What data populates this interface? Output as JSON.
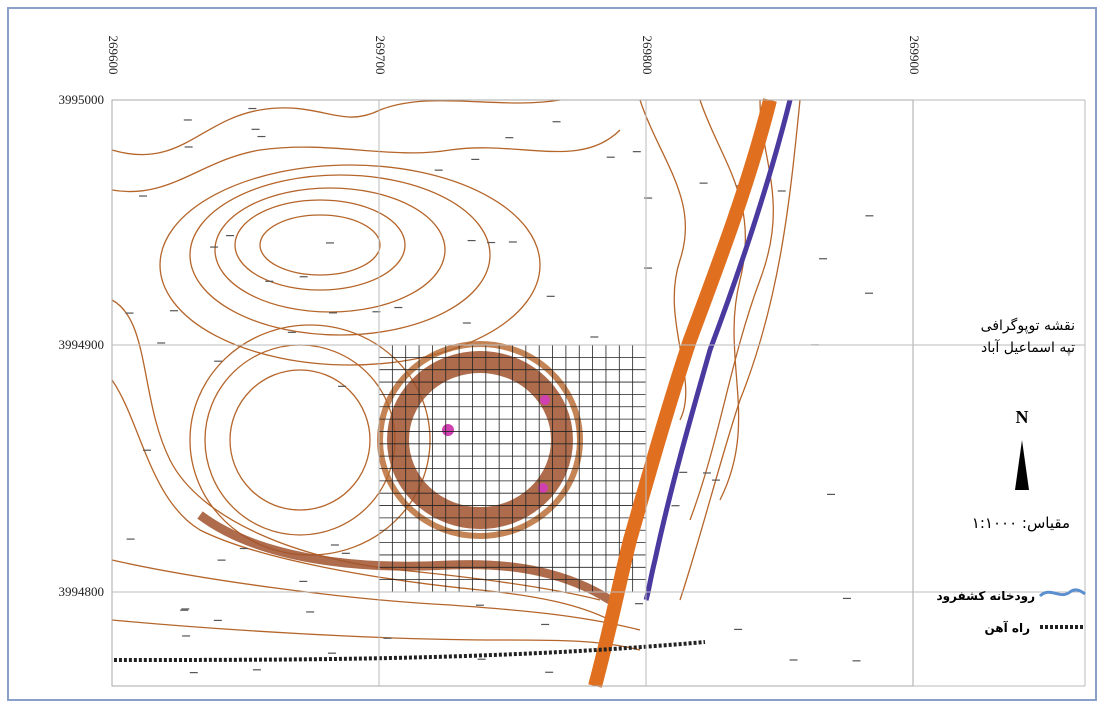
{
  "map": {
    "x_labels": [
      "269600",
      "269700",
      "269800",
      "269900"
    ],
    "y_labels": [
      "3995000",
      "3994900",
      "3994800"
    ],
    "title": [
      "نقشه توپوگرافی",
      "تپه اسماعیل آباد"
    ],
    "north": "N",
    "scale": "مقیاس: ۱:۱۰۰۰",
    "legend": [
      "رودخانه کشفرود",
      "راه آهن"
    ]
  }
}
